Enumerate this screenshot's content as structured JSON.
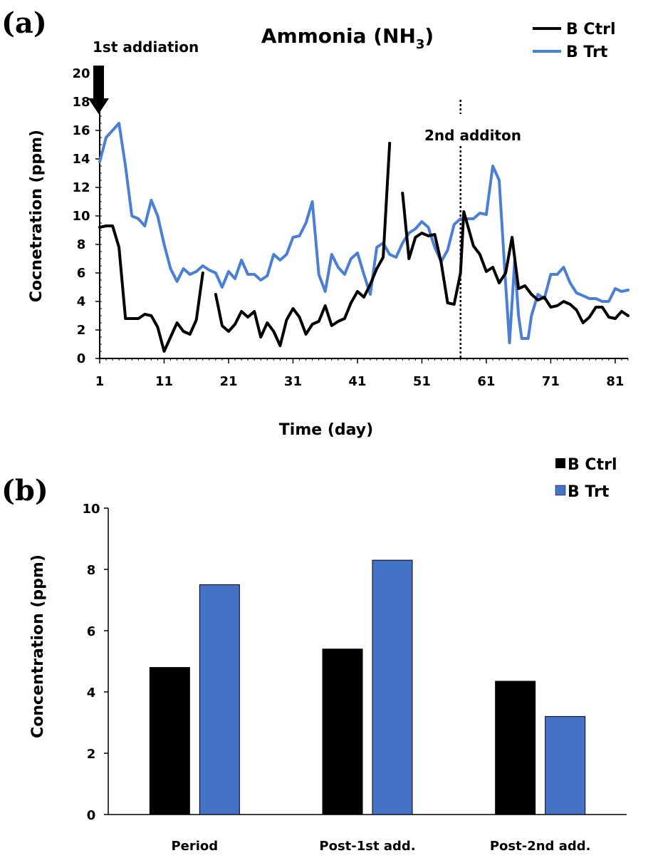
{
  "chart_data": [
    {
      "panel": "(a)",
      "type": "line",
      "title": "Ammonia (NH3)",
      "title_main": "Ammonia (NH",
      "title_sub": "3",
      "title_end": ")",
      "xlabel": "Time (day)",
      "ylabel": "Cocnetration (ppm)",
      "xlim": [
        1,
        83
      ],
      "ylim": [
        0,
        20
      ],
      "xticks": [
        1,
        11,
        21,
        31,
        41,
        51,
        61,
        71,
        81
      ],
      "yticks": [
        0,
        2,
        4,
        6,
        8,
        10,
        12,
        14,
        16,
        18,
        20
      ],
      "legend_position": "top-right",
      "annotations": [
        {
          "text": "1st addiation",
          "x": 1
        },
        {
          "text": "2nd additon",
          "x": 57
        }
      ],
      "series": [
        {
          "name": "B Ctrl",
          "color": "#000000",
          "segments": [
            [
              [
                1,
                9.2
              ],
              [
                2,
                9.3
              ],
              [
                3,
                9.3
              ],
              [
                4,
                7.8
              ],
              [
                5,
                2.8
              ],
              [
                6,
                2.8
              ],
              [
                7,
                2.8
              ],
              [
                8,
                3.1
              ],
              [
                9,
                3.0
              ],
              [
                10,
                2.2
              ],
              [
                11,
                0.5
              ],
              [
                12,
                1.5
              ],
              [
                13,
                2.5
              ],
              [
                14,
                1.9
              ],
              [
                15,
                1.7
              ],
              [
                16,
                2.7
              ],
              [
                17,
                6.0
              ]
            ],
            [
              [
                19,
                4.5
              ],
              [
                20,
                2.3
              ],
              [
                21,
                1.9
              ],
              [
                22,
                2.4
              ],
              [
                23,
                3.3
              ],
              [
                24,
                2.9
              ],
              [
                25,
                3.3
              ],
              [
                26,
                1.5
              ],
              [
                27,
                2.5
              ],
              [
                28,
                1.9
              ],
              [
                29,
                0.9
              ],
              [
                30,
                2.7
              ],
              [
                31,
                3.5
              ],
              [
                32,
                2.9
              ],
              [
                33,
                1.7
              ],
              [
                34,
                2.4
              ],
              [
                35,
                2.6
              ],
              [
                36,
                3.7
              ],
              [
                37,
                2.3
              ],
              [
                38,
                2.6
              ],
              [
                39,
                2.8
              ],
              [
                40,
                3.9
              ],
              [
                41,
                4.7
              ],
              [
                42,
                4.3
              ],
              [
                43,
                5.2
              ],
              [
                44,
                6.3
              ],
              [
                45,
                7.1
              ],
              [
                46,
                15.1
              ]
            ],
            [
              [
                48,
                11.6
              ],
              [
                49,
                7.0
              ],
              [
                50,
                8.5
              ],
              [
                51,
                8.8
              ],
              [
                52,
                8.6
              ],
              [
                53,
                8.7
              ],
              [
                54,
                6.7
              ],
              [
                55,
                3.9
              ],
              [
                56,
                3.8
              ],
              [
                57,
                6.0
              ],
              [
                57.5,
                10.3
              ],
              [
                58,
                9.5
              ],
              [
                59,
                7.9
              ],
              [
                60,
                7.3
              ],
              [
                61,
                6.1
              ],
              [
                62,
                6.4
              ],
              [
                63,
                5.3
              ],
              [
                64,
                6.0
              ],
              [
                65,
                8.5
              ],
              [
                66,
                4.9
              ],
              [
                67,
                5.1
              ],
              [
                68,
                4.5
              ],
              [
                69,
                4.1
              ],
              [
                70,
                4.3
              ],
              [
                71,
                3.6
              ],
              [
                72,
                3.7
              ],
              [
                73,
                4.0
              ],
              [
                74,
                3.8
              ],
              [
                75,
                3.4
              ],
              [
                76,
                2.5
              ],
              [
                77,
                2.9
              ],
              [
                78,
                3.6
              ],
              [
                79,
                3.6
              ],
              [
                80,
                2.9
              ],
              [
                81,
                2.8
              ],
              [
                82,
                3.3
              ],
              [
                83,
                3.0
              ]
            ]
          ]
        },
        {
          "name": "B Trt",
          "color": "#4a7fd4",
          "segments": [
            [
              [
                1,
                13.8
              ],
              [
                2,
                15.5
              ],
              [
                3,
                16.0
              ],
              [
                4,
                16.5
              ],
              [
                5,
                13.5
              ],
              [
                6,
                10.0
              ],
              [
                7,
                9.8
              ],
              [
                8,
                9.3
              ],
              [
                9,
                11.1
              ],
              [
                10,
                10.0
              ],
              [
                11,
                8.0
              ],
              [
                12,
                6.3
              ],
              [
                13,
                5.4
              ],
              [
                14,
                6.3
              ],
              [
                15,
                5.9
              ],
              [
                16,
                6.1
              ],
              [
                17,
                6.5
              ],
              [
                18,
                6.2
              ],
              [
                19,
                6.0
              ],
              [
                20,
                5.0
              ],
              [
                21,
                6.1
              ],
              [
                22,
                5.6
              ],
              [
                23,
                6.9
              ],
              [
                24,
                5.9
              ],
              [
                25,
                5.9
              ],
              [
                26,
                5.5
              ],
              [
                27,
                5.8
              ],
              [
                28,
                7.3
              ],
              [
                29,
                6.9
              ],
              [
                30,
                7.3
              ],
              [
                31,
                8.5
              ],
              [
                32,
                8.6
              ],
              [
                33,
                9.5
              ],
              [
                34,
                11.0
              ],
              [
                35,
                5.9
              ],
              [
                36,
                4.7
              ],
              [
                37,
                7.3
              ],
              [
                38,
                6.4
              ],
              [
                39,
                5.9
              ],
              [
                40,
                7.0
              ],
              [
                41,
                7.4
              ],
              [
                42,
                5.9
              ],
              [
                43,
                4.5
              ],
              [
                44,
                7.8
              ],
              [
                45,
                8.1
              ],
              [
                46,
                7.3
              ],
              [
                47,
                7.1
              ],
              [
                48,
                8.1
              ],
              [
                49,
                8.8
              ],
              [
                50,
                9.1
              ],
              [
                51,
                9.6
              ],
              [
                52,
                9.2
              ],
              [
                53,
                7.8
              ],
              [
                54,
                6.8
              ],
              [
                55,
                7.6
              ],
              [
                56,
                9.4
              ],
              [
                57,
                9.8
              ],
              [
                58,
                9.8
              ],
              [
                59,
                9.8
              ],
              [
                60,
                10.2
              ],
              [
                61,
                10.1
              ],
              [
                62,
                13.5
              ],
              [
                63,
                12.5
              ],
              [
                64,
                5.2
              ],
              [
                64.6,
                1.1
              ],
              [
                65.4,
                6.8
              ],
              [
                66,
                3.0
              ],
              [
                66.5,
                1.4
              ],
              [
                67.5,
                1.4
              ],
              [
                68,
                3.0
              ],
              [
                69,
                4.5
              ],
              [
                70,
                4.2
              ],
              [
                71,
                5.9
              ],
              [
                72,
                5.9
              ],
              [
                73,
                6.4
              ],
              [
                74,
                5.3
              ],
              [
                75,
                4.6
              ],
              [
                76,
                4.4
              ],
              [
                77,
                4.2
              ],
              [
                78,
                4.2
              ],
              [
                79,
                4.0
              ],
              [
                80,
                4.0
              ],
              [
                81,
                4.9
              ],
              [
                82,
                4.7
              ],
              [
                83,
                4.8
              ]
            ]
          ]
        }
      ]
    },
    {
      "panel": "(b)",
      "type": "bar",
      "xlabel": "",
      "ylabel": "Concentration (ppm)",
      "ylim": [
        0,
        10
      ],
      "yticks": [
        0,
        2,
        4,
        6,
        8,
        10
      ],
      "categories": [
        "Period",
        "Post-1st add.",
        "Post-2nd add."
      ],
      "legend_position": "top-right",
      "series": [
        {
          "name": "B Ctrl",
          "color": "#000000",
          "values": [
            4.8,
            5.4,
            4.35
          ]
        },
        {
          "name": "B Trt",
          "color": "#4472c4",
          "values": [
            7.5,
            8.3,
            3.2
          ]
        }
      ]
    }
  ]
}
